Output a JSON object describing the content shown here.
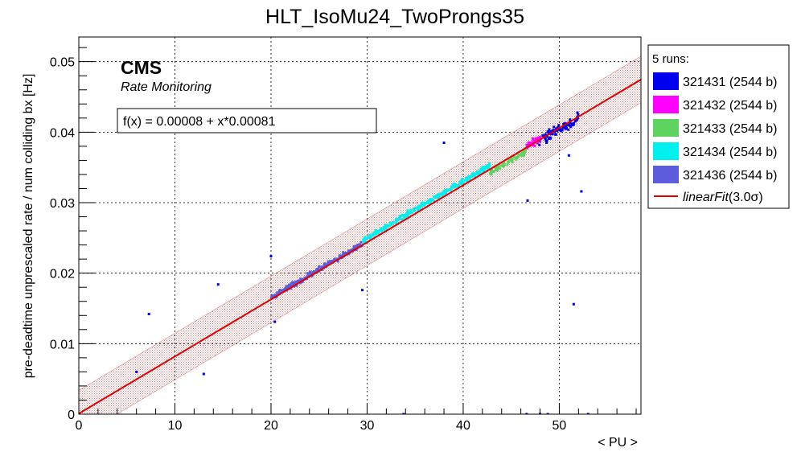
{
  "chart_data": {
    "type": "scatter",
    "title": "HLT_IsoMu24_TwoProngs35",
    "xlabel": "< PU >",
    "ylabel": "pre-deadtime unprescaled rate / num colliding bx [Hz]",
    "xlim": [
      0,
      58.5
    ],
    "ylim": [
      0,
      0.0535
    ],
    "xticks": [
      0,
      10,
      20,
      30,
      40,
      50
    ],
    "xtick_labels": [
      "0",
      "10",
      "20",
      "30",
      "40",
      "50"
    ],
    "yticks": [
      0,
      0.01,
      0.02,
      0.03,
      0.04,
      0.05
    ],
    "ytick_labels": [
      "0",
      "0.01",
      "0.02",
      "0.03",
      "0.04",
      "0.05"
    ],
    "grid": true,
    "legend_placement": "right-outside",
    "cms_label": "CMS",
    "cms_sublabel": "Rate Monitoring",
    "fit_box_text": "f(x) = 0.00008 + x*0.00081",
    "legend_header": "5 runs:",
    "fit": {
      "intercept": 8e-05,
      "slope": 0.00081,
      "band_half_width": 0.0033,
      "color": "#e00000",
      "band_color": "#c06060",
      "legend_label_main": "linearFit",
      "legend_label_suffix": "(3.0σ)"
    },
    "series": [
      {
        "name": "321431 (2544 b)",
        "color": "#0000ee",
        "cluster": {
          "x_range": [
            47.5,
            52.0
          ],
          "center_y": 0.0402,
          "slope": 0.00081,
          "scatter": 0.0012,
          "count": 90
        },
        "outliers": [
          [
            6.0,
            0.006
          ],
          [
            7.3,
            0.0142
          ],
          [
            13.0,
            0.0057
          ],
          [
            14.5,
            0.0184
          ],
          [
            20.0,
            0.0224
          ],
          [
            20.4,
            0.0131
          ],
          [
            29.5,
            0.0176
          ],
          [
            33.8,
            0.0
          ],
          [
            38.0,
            0.0385
          ],
          [
            46.7,
            0.0303
          ],
          [
            46.6,
            0.0
          ],
          [
            48.0,
            0.0
          ],
          [
            48.8,
            0.0
          ],
          [
            51.0,
            0.0367
          ],
          [
            51.5,
            0.0156
          ],
          [
            52.3,
            0.0316
          ],
          [
            53.0,
            0.0
          ]
        ]
      },
      {
        "name": "321432 (2544 b)",
        "color": "#ff00ff",
        "cluster": {
          "x_range": [
            46.6,
            48.0
          ],
          "center_y": 0.0385,
          "slope": 0.00081,
          "scatter": 0.0009,
          "count": 45
        },
        "outliers": []
      },
      {
        "name": "321433 (2544 b)",
        "color": "#5fd35f",
        "cluster": {
          "x_range": [
            42.8,
            46.6
          ],
          "center_y": 0.0358,
          "slope": 0.00081,
          "scatter": 0.0006,
          "count": 70
        },
        "outliers": []
      },
      {
        "name": "321434 (2544 b)",
        "color": "#00f0f0",
        "cluster": {
          "x_range": [
            29.6,
            42.8
          ],
          "center_y": 0.03,
          "slope": 0.00081,
          "scatter": 0.0006,
          "count": 260
        },
        "outliers": []
      },
      {
        "name": "321436 (2544 b)",
        "color": "#5c5cdc",
        "cluster": {
          "x_range": [
            20.0,
            29.5
          ],
          "center_y": 0.0203,
          "slope": 0.00081,
          "scatter": 0.0006,
          "count": 240
        },
        "outliers": []
      }
    ]
  }
}
